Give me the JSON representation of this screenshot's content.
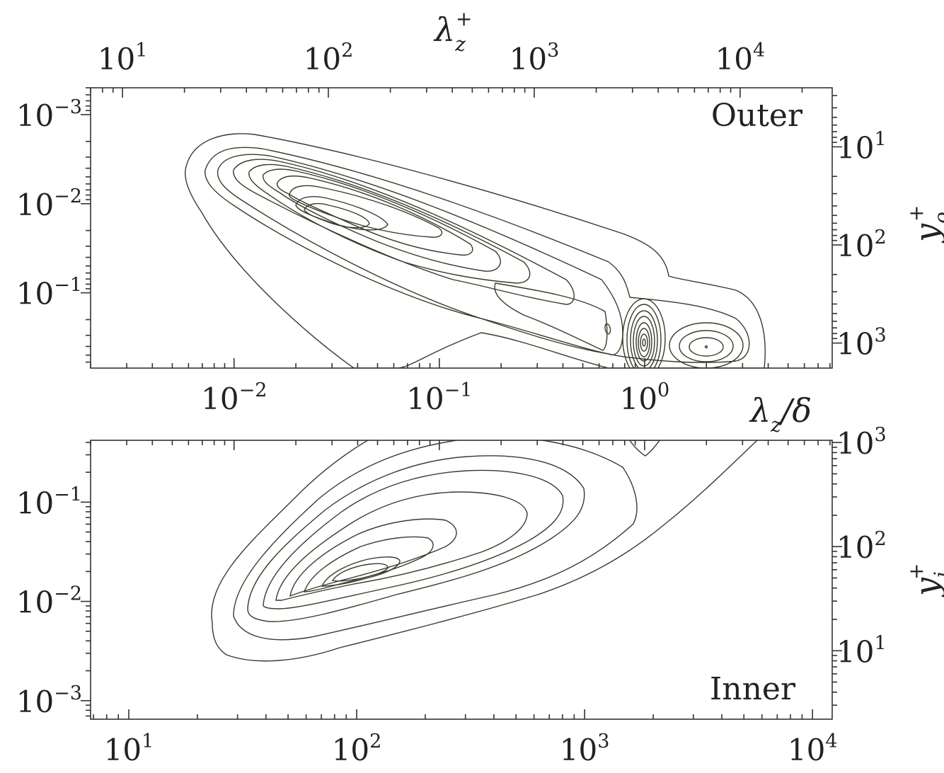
{
  "chart_data": [
    {
      "type": "contour",
      "panel": "top",
      "label": "Outer",
      "x_bottom": {
        "label": "λz/δ",
        "scale": "log",
        "ticks": [
          {
            "base": "10",
            "exp": "−2",
            "v": 0.01
          },
          {
            "base": "10",
            "exp": "−1",
            "v": 0.1
          },
          {
            "base": "10",
            "exp": "0",
            "v": 1
          }
        ]
      },
      "x_top": {
        "label": "λz+",
        "scale": "log",
        "ticks": [
          {
            "base": "10",
            "exp": "1",
            "v": 10
          },
          {
            "base": "10",
            "exp": "2",
            "v": 100
          },
          {
            "base": "10",
            "exp": "3",
            "v": 1000
          },
          {
            "base": "10",
            "exp": "4",
            "v": 10000
          }
        ]
      },
      "y_left": {
        "scale": "log",
        "inverted": true,
        "ticks": [
          {
            "base": "10",
            "exp": "−3",
            "v": 0.001
          },
          {
            "base": "10",
            "exp": "−2",
            "v": 0.01
          },
          {
            "base": "10",
            "exp": "−1",
            "v": 0.1
          }
        ]
      },
      "y_right": {
        "label": "yo+",
        "scale": "log",
        "ticks": [
          {
            "base": "10",
            "exp": "1",
            "v": 10
          },
          {
            "base": "10",
            "exp": "2",
            "v": 100
          },
          {
            "base": "10",
            "exp": "3",
            "v": 1000
          }
        ]
      },
      "peaks": [
        {
          "lambda_delta": 0.035,
          "y": 0.01,
          "level": 1.0
        },
        {
          "lambda_delta": 1.0,
          "y": 0.4,
          "level": 0.9
        },
        {
          "lambda_delta": 2.0,
          "y": 0.45,
          "level": 0.45
        }
      ],
      "levels": 10,
      "colormap": [
        "#ffffff",
        "#fffde0",
        "#fffab0",
        "#fff580",
        "#ffee40",
        "#ffe020",
        "#ffc818",
        "#ffaa14",
        "#ff8a10",
        "#ff6a0a"
      ]
    },
    {
      "type": "contour",
      "panel": "bottom",
      "label": "Inner",
      "x_bottom": {
        "label": "",
        "scale": "log",
        "ticks": [
          {
            "base": "10",
            "exp": "1",
            "v": 10
          },
          {
            "base": "10",
            "exp": "2",
            "v": 100
          },
          {
            "base": "10",
            "exp": "3",
            "v": 1000
          },
          {
            "base": "10",
            "exp": "4",
            "v": 10000
          }
        ]
      },
      "y_left": {
        "scale": "log",
        "ticks": [
          {
            "base": "10",
            "exp": "−3",
            "v": 0.001
          },
          {
            "base": "10",
            "exp": "−2",
            "v": 0.01
          },
          {
            "base": "10",
            "exp": "−1",
            "v": 0.1
          }
        ]
      },
      "y_right": {
        "label": "yi+",
        "scale": "log",
        "ticks": [
          {
            "base": "10",
            "exp": "1",
            "v": 10
          },
          {
            "base": "10",
            "exp": "2",
            "v": 100
          },
          {
            "base": "10",
            "exp": "3",
            "v": 1000
          }
        ]
      },
      "peaks": [
        {
          "lambda_plus": 120,
          "y": 0.016,
          "level": 0.55
        }
      ],
      "levels": 10,
      "colormap": [
        "#ffffff",
        "#fffde0",
        "#fffab0",
        "#fff580",
        "#ffee40",
        "#ffe020",
        "#ffc818",
        "#ffaa14",
        "#ff8a10",
        "#ff6a0a"
      ]
    }
  ]
}
